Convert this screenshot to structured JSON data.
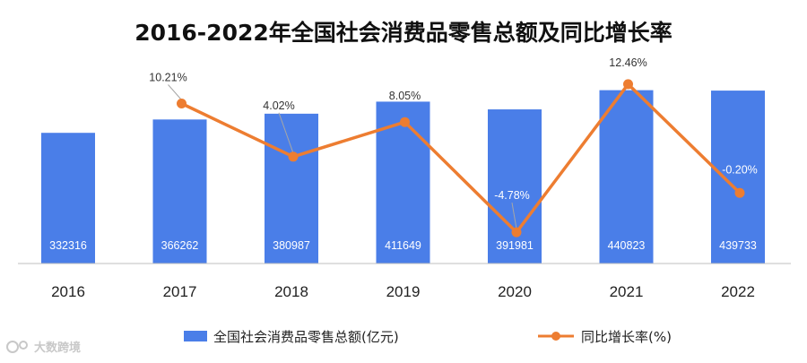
{
  "watermark": "大数跨境",
  "chart_data": {
    "type": "bar",
    "title": "2016-2022年全国社会消费品零售总额及同比增长率",
    "categories": [
      "2016",
      "2017",
      "2018",
      "2019",
      "2020",
      "2021",
      "2022"
    ],
    "series": [
      {
        "name": "全国社会消费品零售总额(亿元)",
        "type": "bar",
        "color": "#4a7ee8",
        "values": [
          332316,
          366262,
          380987,
          411649,
          391981,
          440823,
          439733
        ],
        "labels": [
          "332316",
          "366262",
          "380987",
          "411649",
          "391981",
          "440823",
          "439733"
        ]
      },
      {
        "name": "同比增长率(%)",
        "type": "line",
        "color": "#ed7d31",
        "values": [
          null,
          10.21,
          4.02,
          8.05,
          -4.78,
          12.46,
          -0.2
        ],
        "labels": [
          "",
          "10.21%",
          "4.02%",
          "8.05%",
          "-4.78%",
          "12.46%",
          "-0.20%"
        ]
      }
    ],
    "ylim_bar": [
      0,
      620000
    ],
    "ylim_line": [
      -8,
      16
    ],
    "legend_position": "bottom",
    "grid": false
  }
}
